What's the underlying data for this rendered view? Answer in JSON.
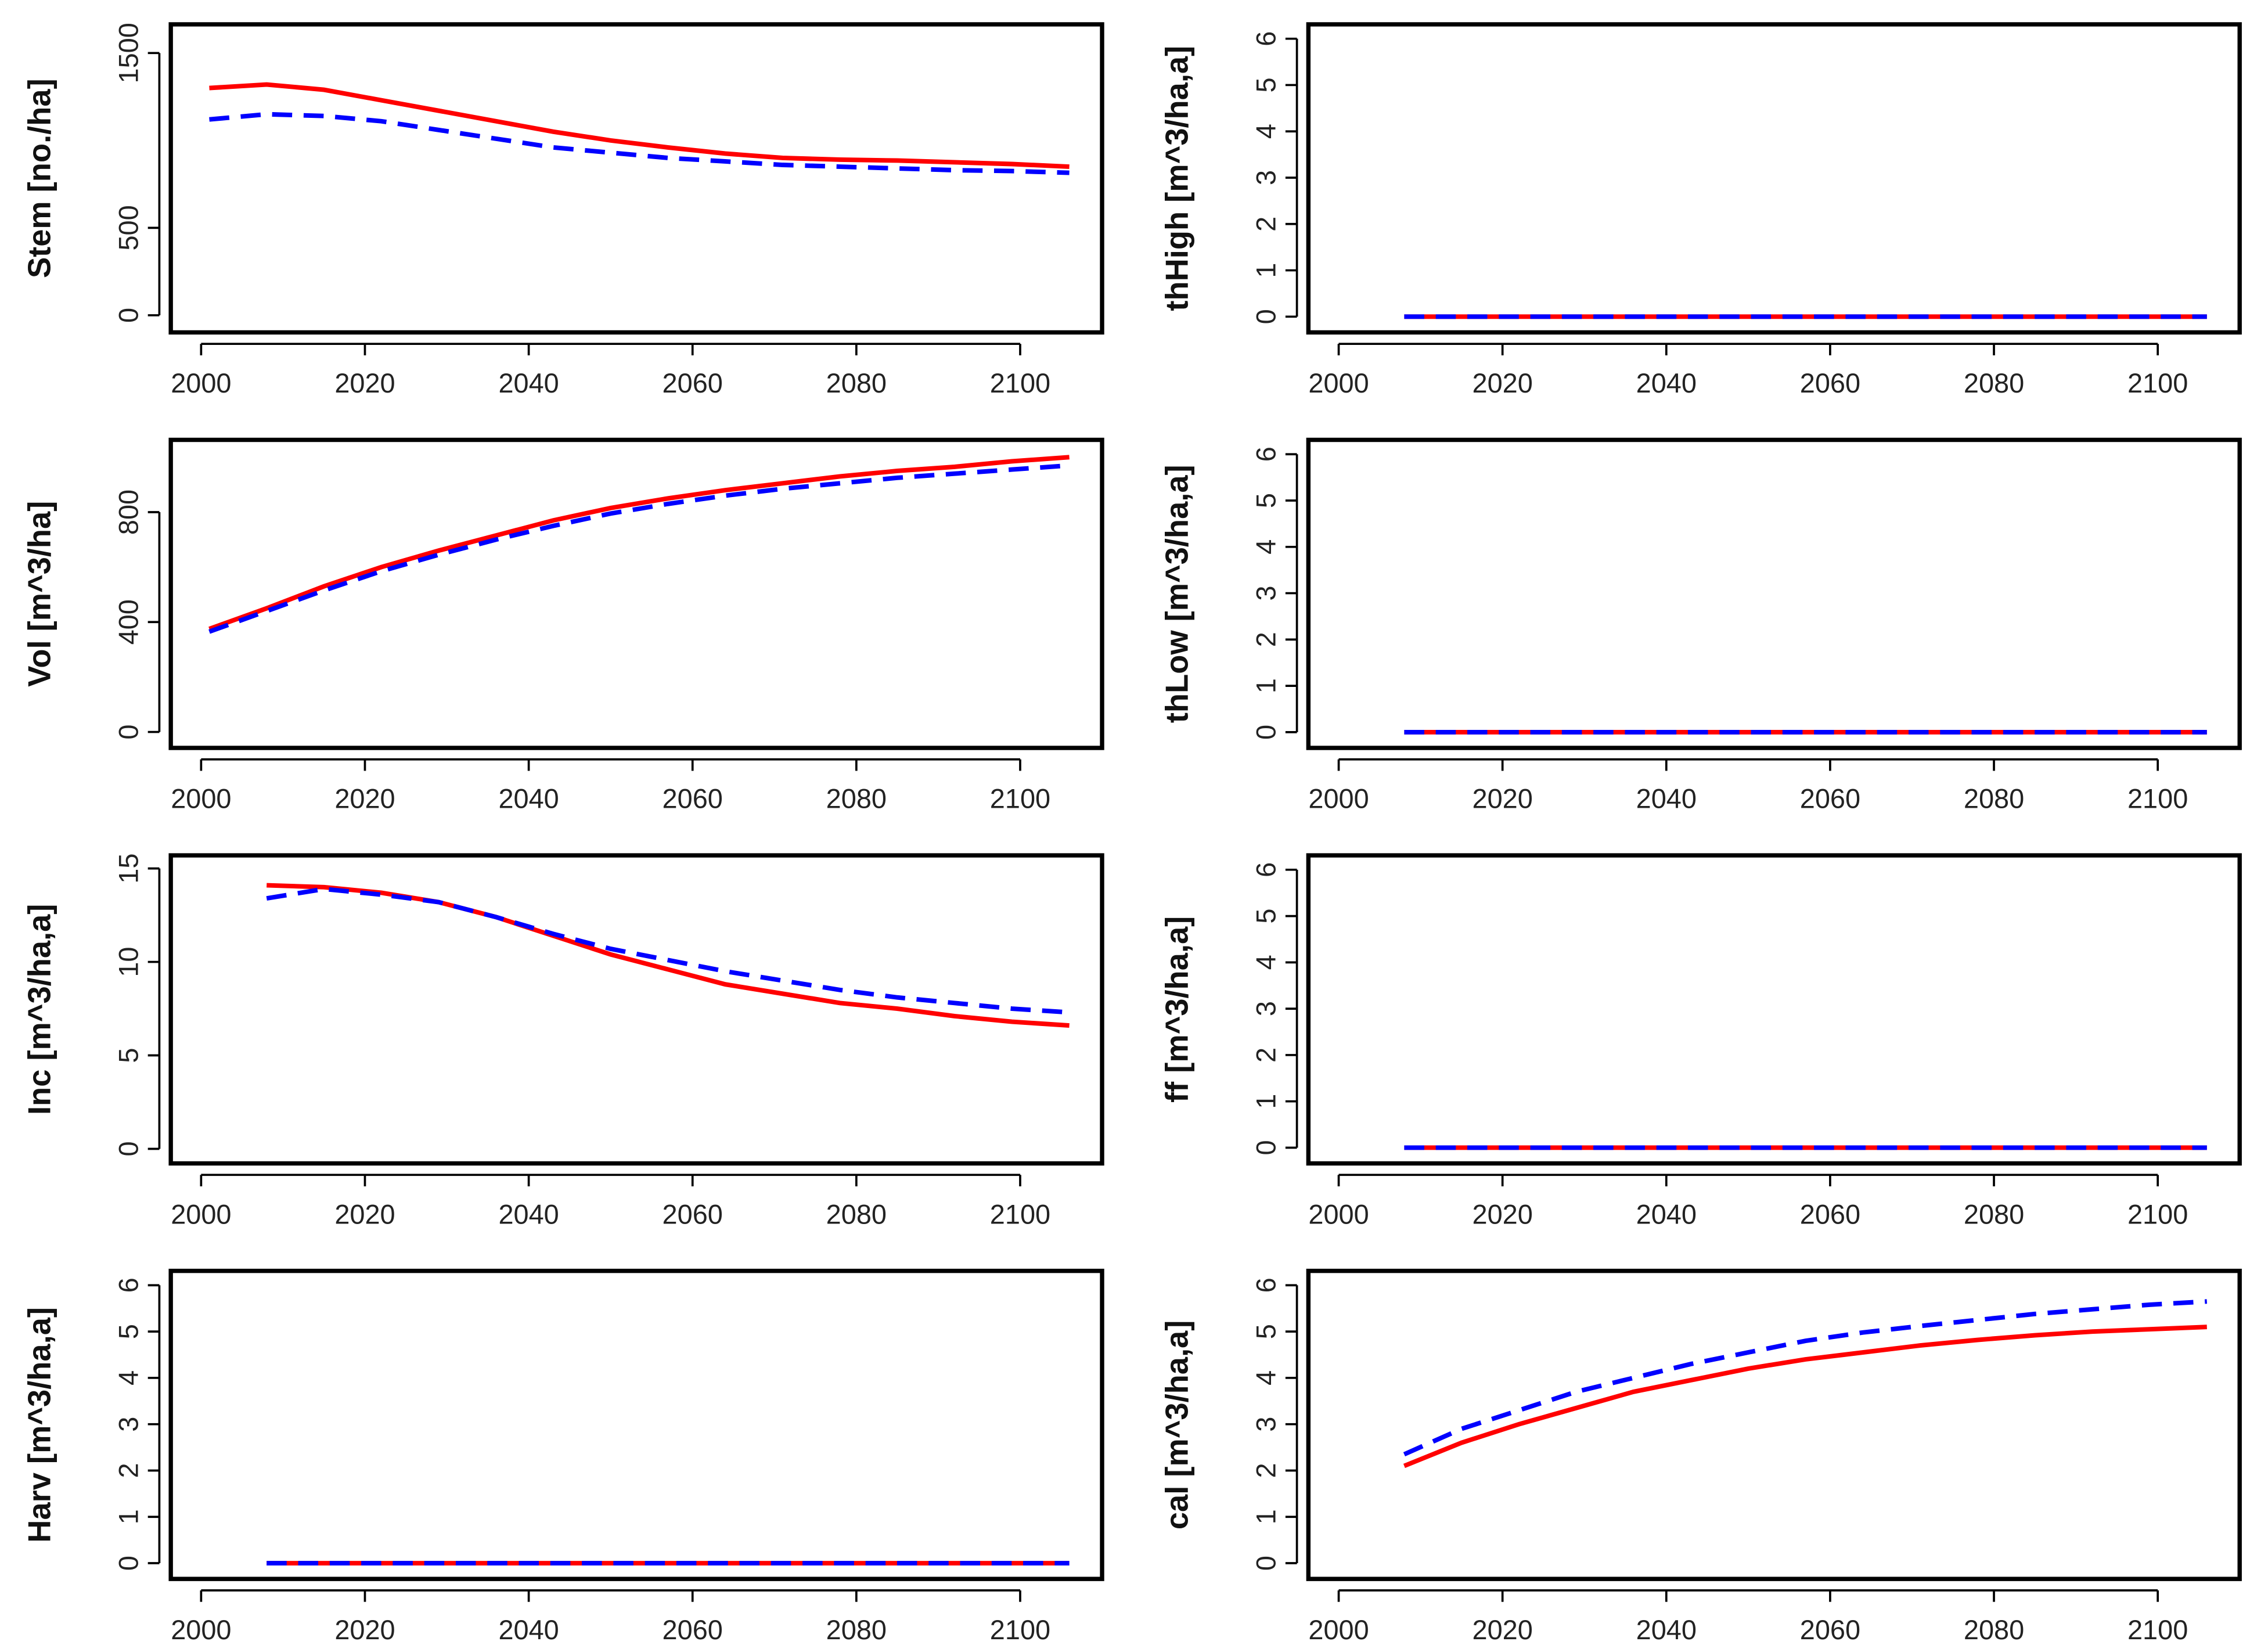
{
  "chart_data": [
    {
      "type": "line",
      "ylabel": "Stem [no./ha]",
      "x": [
        2001,
        2008,
        2015,
        2022,
        2029,
        2036,
        2043,
        2050,
        2057,
        2064,
        2071,
        2078,
        2085,
        2092,
        2099,
        2106
      ],
      "series": [
        {
          "color": "#ff0000",
          "linestyle": "solid",
          "values": [
            1300,
            1320,
            1290,
            1230,
            1170,
            1110,
            1050,
            1000,
            960,
            925,
            900,
            890,
            885,
            875,
            865,
            850
          ]
        },
        {
          "color": "#0000ff",
          "linestyle": "dashed",
          "values": [
            1120,
            1150,
            1140,
            1110,
            1060,
            1010,
            960,
            930,
            900,
            880,
            860,
            850,
            840,
            830,
            825,
            815
          ]
        }
      ],
      "xlim": [
        1996.3,
        2110
      ],
      "xticks": [
        2000,
        2020,
        2040,
        2060,
        2080,
        2100
      ],
      "ylim": [
        -98,
        1664
      ],
      "yticks": [
        0,
        500,
        1500
      ]
    },
    {
      "type": "line",
      "ylabel": "thHigh [m^3/ha,a]",
      "x": [
        2008,
        2015,
        2022,
        2029,
        2036,
        2043,
        2050,
        2057,
        2064,
        2071,
        2078,
        2085,
        2092,
        2099,
        2106
      ],
      "series": [
        {
          "color": "#ff0000",
          "linestyle": "solid",
          "values": [
            0,
            0,
            0,
            0,
            0,
            0,
            0,
            0,
            0,
            0,
            0,
            0,
            0,
            0,
            0
          ]
        },
        {
          "color": "#0000ff",
          "linestyle": "dashed",
          "values": [
            0,
            0,
            0,
            0,
            0,
            0,
            0,
            0,
            0,
            0,
            0,
            0,
            0,
            0,
            0
          ]
        }
      ],
      "xlim": [
        1996.3,
        2110
      ],
      "xticks": [
        2000,
        2020,
        2040,
        2060,
        2080,
        2100
      ],
      "ylim": [
        -0.34,
        6.31
      ],
      "yticks": [
        0,
        1,
        2,
        3,
        4,
        5,
        6
      ]
    },
    {
      "type": "line",
      "ylabel": "Vol [m^3/ha]",
      "x": [
        2001,
        2008,
        2015,
        2022,
        2029,
        2036,
        2043,
        2050,
        2057,
        2064,
        2071,
        2078,
        2085,
        2092,
        2099,
        2106
      ],
      "series": [
        {
          "color": "#ff0000",
          "linestyle": "solid",
          "values": [
            375,
            450,
            530,
            600,
            660,
            715,
            770,
            815,
            850,
            880,
            905,
            930,
            950,
            965,
            985,
            1000
          ]
        },
        {
          "color": "#0000ff",
          "linestyle": "dashed",
          "values": [
            365,
            440,
            515,
            585,
            645,
            700,
            750,
            795,
            830,
            860,
            885,
            905,
            925,
            940,
            955,
            970
          ]
        }
      ],
      "xlim": [
        1996.3,
        2110
      ],
      "xticks": [
        2000,
        2020,
        2040,
        2060,
        2080,
        2100
      ],
      "ylim": [
        -58,
        1063
      ],
      "yticks": [
        0,
        400,
        800
      ]
    },
    {
      "type": "line",
      "ylabel": "thLow [m^3/ha,a]",
      "x": [
        2008,
        2015,
        2022,
        2029,
        2036,
        2043,
        2050,
        2057,
        2064,
        2071,
        2078,
        2085,
        2092,
        2099,
        2106
      ],
      "series": [
        {
          "color": "#ff0000",
          "linestyle": "solid",
          "values": [
            0,
            0,
            0,
            0,
            0,
            0,
            0,
            0,
            0,
            0,
            0,
            0,
            0,
            0,
            0
          ]
        },
        {
          "color": "#0000ff",
          "linestyle": "dashed",
          "values": [
            0,
            0,
            0,
            0,
            0,
            0,
            0,
            0,
            0,
            0,
            0,
            0,
            0,
            0,
            0
          ]
        }
      ],
      "xlim": [
        1996.3,
        2110
      ],
      "xticks": [
        2000,
        2020,
        2040,
        2060,
        2080,
        2100
      ],
      "ylim": [
        -0.34,
        6.31
      ],
      "yticks": [
        0,
        1,
        2,
        3,
        4,
        5,
        6
      ]
    },
    {
      "type": "line",
      "ylabel": "Inc [m^3/ha,a]",
      "x": [
        2008,
        2015,
        2022,
        2029,
        2036,
        2043,
        2050,
        2057,
        2064,
        2071,
        2078,
        2085,
        2092,
        2099,
        2106
      ],
      "series": [
        {
          "color": "#ff0000",
          "linestyle": "solid",
          "values": [
            14.1,
            14.0,
            13.7,
            13.2,
            12.4,
            11.4,
            10.4,
            9.6,
            8.8,
            8.3,
            7.8,
            7.5,
            7.1,
            6.8,
            6.6
          ]
        },
        {
          "color": "#0000ff",
          "linestyle": "dashed",
          "values": [
            13.4,
            13.9,
            13.6,
            13.2,
            12.4,
            11.5,
            10.7,
            10.1,
            9.5,
            9.0,
            8.5,
            8.1,
            7.8,
            7.5,
            7.3
          ]
        }
      ],
      "xlim": [
        1996.3,
        2110
      ],
      "xticks": [
        2000,
        2020,
        2040,
        2060,
        2080,
        2100
      ],
      "ylim": [
        -0.78,
        15.7
      ],
      "yticks": [
        0,
        5,
        10,
        15
      ]
    },
    {
      "type": "line",
      "ylabel": "ff [m^3/ha,a]",
      "x": [
        2008,
        2015,
        2022,
        2029,
        2036,
        2043,
        2050,
        2057,
        2064,
        2071,
        2078,
        2085,
        2092,
        2099,
        2106
      ],
      "series": [
        {
          "color": "#ff0000",
          "linestyle": "solid",
          "values": [
            0,
            0,
            0,
            0,
            0,
            0,
            0,
            0,
            0,
            0,
            0,
            0,
            0,
            0,
            0
          ]
        },
        {
          "color": "#0000ff",
          "linestyle": "dashed",
          "values": [
            0,
            0,
            0,
            0,
            0,
            0,
            0,
            0,
            0,
            0,
            0,
            0,
            0,
            0,
            0
          ]
        }
      ],
      "xlim": [
        1996.3,
        2110
      ],
      "xticks": [
        2000,
        2020,
        2040,
        2060,
        2080,
        2100
      ],
      "ylim": [
        -0.34,
        6.31
      ],
      "yticks": [
        0,
        1,
        2,
        3,
        4,
        5,
        6
      ]
    },
    {
      "type": "line",
      "ylabel": "Harv [m^3/ha,a]",
      "x": [
        2008,
        2015,
        2022,
        2029,
        2036,
        2043,
        2050,
        2057,
        2064,
        2071,
        2078,
        2085,
        2092,
        2099,
        2106
      ],
      "series": [
        {
          "color": "#ff0000",
          "linestyle": "solid",
          "values": [
            0,
            0,
            0,
            0,
            0,
            0,
            0,
            0,
            0,
            0,
            0,
            0,
            0,
            0,
            0
          ]
        },
        {
          "color": "#0000ff",
          "linestyle": "dashed",
          "values": [
            0,
            0,
            0,
            0,
            0,
            0,
            0,
            0,
            0,
            0,
            0,
            0,
            0,
            0,
            0
          ]
        }
      ],
      "xlim": [
        1996.3,
        2110
      ],
      "xticks": [
        2000,
        2020,
        2040,
        2060,
        2080,
        2100
      ],
      "ylim": [
        -0.34,
        6.31
      ],
      "yticks": [
        0,
        1,
        2,
        3,
        4,
        5,
        6
      ]
    },
    {
      "type": "line",
      "ylabel": "cal [m^3/ha,a]",
      "x": [
        2008,
        2015,
        2022,
        2029,
        2036,
        2043,
        2050,
        2057,
        2064,
        2071,
        2078,
        2085,
        2092,
        2099,
        2106
      ],
      "series": [
        {
          "color": "#ff0000",
          "linestyle": "solid",
          "values": [
            2.1,
            2.6,
            3.0,
            3.35,
            3.7,
            3.95,
            4.2,
            4.4,
            4.55,
            4.7,
            4.82,
            4.92,
            5.0,
            5.05,
            5.1
          ]
        },
        {
          "color": "#0000ff",
          "linestyle": "dashed",
          "values": [
            2.35,
            2.9,
            3.3,
            3.7,
            4.0,
            4.3,
            4.55,
            4.8,
            4.98,
            5.12,
            5.25,
            5.38,
            5.48,
            5.58,
            5.65
          ]
        }
      ],
      "xlim": [
        1996.3,
        2110
      ],
      "xticks": [
        2000,
        2020,
        2040,
        2060,
        2080,
        2100
      ],
      "ylim": [
        -0.34,
        6.31
      ],
      "yticks": [
        0,
        1,
        2,
        3,
        4,
        5,
        6
      ]
    }
  ]
}
